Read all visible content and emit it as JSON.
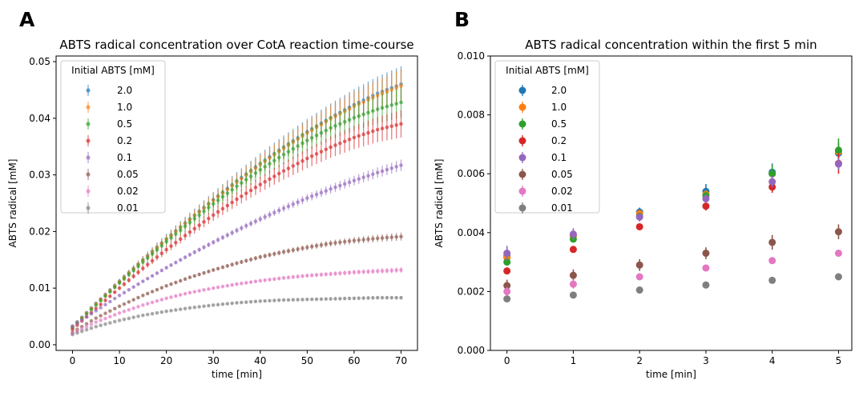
{
  "panels": {
    "a": {
      "label": "A"
    },
    "b": {
      "label": "B"
    }
  },
  "chart_data": [
    {
      "type": "scatter",
      "title": "ABTS radical concentration over CotA reaction time-course",
      "xlabel": "time [min]",
      "ylabel": "ABTS radical [mM]",
      "xlim": [
        -3.5,
        73.5
      ],
      "ylim": [
        -0.001,
        0.051
      ],
      "xticks": [
        0,
        10,
        20,
        30,
        40,
        50,
        60,
        70
      ],
      "xtick_labels": [
        "0",
        "10",
        "20",
        "30",
        "40",
        "50",
        "60",
        "70"
      ],
      "yticks": [
        0,
        0.01,
        0.02,
        0.03,
        0.04,
        0.05
      ],
      "ytick_labels": [
        "0.00",
        "0.01",
        "0.02",
        "0.03",
        "0.04",
        "0.05"
      ],
      "grid": false,
      "legend": {
        "title": "Initial ABTS [mM]",
        "placement": "top-left"
      },
      "error_bars": true,
      "x_sampling": {
        "start": 0,
        "step": 1,
        "end": 70
      },
      "series_curve_note": "values at x = 0, 5, 10, ..., 70",
      "series": [
        {
          "name": "2.0",
          "color": "#1f77b4",
          "x": [
            0,
            5,
            10,
            15,
            20,
            25,
            30,
            35,
            40,
            45,
            50,
            55,
            60,
            65,
            70
          ],
          "y": [
            0.0032,
            0.0073,
            0.0112,
            0.015,
            0.0187,
            0.0222,
            0.0256,
            0.0289,
            0.032,
            0.0349,
            0.0376,
            0.0401,
            0.0424,
            0.0444,
            0.046
          ],
          "err_end": 0.0032
        },
        {
          "name": "1.0",
          "color": "#ff7f0e",
          "x": [
            0,
            5,
            10,
            15,
            20,
            25,
            30,
            35,
            40,
            45,
            50,
            55,
            60,
            65,
            70
          ],
          "y": [
            0.0031,
            0.0072,
            0.0111,
            0.0149,
            0.0186,
            0.0221,
            0.0255,
            0.0287,
            0.0318,
            0.0347,
            0.0374,
            0.0399,
            0.0421,
            0.044,
            0.0457
          ],
          "err_end": 0.003
        },
        {
          "name": "0.5",
          "color": "#2ca02c",
          "x": [
            0,
            5,
            10,
            15,
            20,
            25,
            30,
            35,
            40,
            45,
            50,
            55,
            60,
            65,
            70
          ],
          "y": [
            0.003,
            0.007,
            0.0109,
            0.0146,
            0.0182,
            0.0216,
            0.0249,
            0.028,
            0.0309,
            0.0336,
            0.0361,
            0.0383,
            0.0401,
            0.0416,
            0.0428
          ],
          "err_end": 0.0027
        },
        {
          "name": "0.2",
          "color": "#d62728",
          "x": [
            0,
            5,
            10,
            15,
            20,
            25,
            30,
            35,
            40,
            45,
            50,
            55,
            60,
            65,
            70
          ],
          "y": [
            0.0027,
            0.0064,
            0.01,
            0.0135,
            0.0168,
            0.0199,
            0.0229,
            0.0257,
            0.0283,
            0.0307,
            0.0329,
            0.0349,
            0.0366,
            0.038,
            0.039
          ],
          "err_end": 0.0024
        },
        {
          "name": "0.1",
          "color": "#9467bd",
          "x": [
            0,
            5,
            10,
            15,
            20,
            25,
            30,
            35,
            40,
            45,
            50,
            55,
            60,
            65,
            70
          ],
          "y": [
            0.0033,
            0.006,
            0.0087,
            0.0112,
            0.0136,
            0.0159,
            0.0181,
            0.0202,
            0.0222,
            0.0241,
            0.0259,
            0.0275,
            0.029,
            0.0304,
            0.0317
          ],
          "err_end": 0.001
        },
        {
          "name": "0.05",
          "color": "#8c564b",
          "x": [
            0,
            5,
            10,
            15,
            20,
            25,
            30,
            35,
            40,
            45,
            50,
            55,
            60,
            65,
            70
          ],
          "y": [
            0.0022,
            0.0047,
            0.0068,
            0.0087,
            0.0104,
            0.0119,
            0.0132,
            0.0144,
            0.0155,
            0.0164,
            0.0172,
            0.0179,
            0.0184,
            0.0188,
            0.0191
          ],
          "err_end": 0.0007
        },
        {
          "name": "0.02",
          "color": "#e377c2",
          "x": [
            0,
            5,
            10,
            15,
            20,
            25,
            30,
            35,
            40,
            45,
            50,
            55,
            60,
            65,
            70
          ],
          "y": [
            0.002,
            0.004,
            0.0056,
            0.007,
            0.0082,
            0.0092,
            0.01,
            0.0107,
            0.0113,
            0.0118,
            0.0122,
            0.0125,
            0.0128,
            0.013,
            0.0132
          ],
          "err_end": 0.0005
        },
        {
          "name": "0.01",
          "color": "#7f7f7f",
          "x": [
            0,
            5,
            10,
            15,
            20,
            25,
            30,
            35,
            40,
            45,
            50,
            55,
            60,
            65,
            70
          ],
          "y": [
            0.0018,
            0.0032,
            0.0043,
            0.0052,
            0.0059,
            0.0065,
            0.007,
            0.0074,
            0.0077,
            0.0079,
            0.008,
            0.0081,
            0.0082,
            0.0083,
            0.0083
          ],
          "err_end": 0.0003
        }
      ]
    },
    {
      "type": "scatter",
      "title": "ABTS radical concentration within the first 5 min",
      "xlabel": "time [min]",
      "ylabel": "ABTS radical [mM]",
      "xlim": [
        -0.25,
        5.2
      ],
      "ylim": [
        0.0,
        0.01
      ],
      "xticks": [
        0,
        1,
        2,
        3,
        4,
        5
      ],
      "xtick_labels": [
        "0",
        "1",
        "2",
        "3",
        "4",
        "5"
      ],
      "yticks": [
        0,
        0.002,
        0.004,
        0.006,
        0.008,
        0.01
      ],
      "ytick_labels": [
        "0.000",
        "0.002",
        "0.004",
        "0.006",
        "0.008",
        "0.010"
      ],
      "grid": false,
      "legend": {
        "title": "Initial ABTS [mM]",
        "placement": "top-left"
      },
      "error_bars": true,
      "series": [
        {
          "name": "2.0",
          "color": "#1f77b4",
          "x": [
            0,
            1,
            2,
            3,
            4,
            5
          ],
          "y": [
            0.0032,
            0.0039,
            0.0047,
            0.0054,
            0.00605,
            0.0067
          ],
          "err": [
            0.00015,
            0.00015,
            0.00015,
            0.00025,
            0.0003,
            0.0003
          ]
        },
        {
          "name": "1.0",
          "color": "#ff7f0e",
          "x": [
            0,
            1,
            2,
            3,
            4,
            5
          ],
          "y": [
            0.00315,
            0.00388,
            0.00465,
            0.0053,
            0.006,
            0.00675
          ],
          "err": [
            0.0001,
            0.0001,
            0.0001,
            0.00015,
            0.0002,
            0.0003
          ]
        },
        {
          "name": "0.5",
          "color": "#2ca02c",
          "x": [
            0,
            1,
            2,
            3,
            4,
            5
          ],
          "y": [
            0.003,
            0.00378,
            0.00455,
            0.00525,
            0.006,
            0.0068
          ],
          "err": [
            0.0001,
            0.0001,
            0.0001,
            0.00015,
            0.0003,
            0.0004
          ]
        },
        {
          "name": "0.2",
          "color": "#d62728",
          "x": [
            0,
            1,
            2,
            3,
            4,
            5
          ],
          "y": [
            0.0027,
            0.00343,
            0.0042,
            0.0049,
            0.00555,
            0.00635
          ],
          "err": [
            0.0001,
            0.0001,
            0.0001,
            0.00015,
            0.0002,
            0.00035
          ]
        },
        {
          "name": "0.1",
          "color": "#9467bd",
          "x": [
            0,
            1,
            2,
            3,
            4,
            5
          ],
          "y": [
            0.0033,
            0.00395,
            0.00453,
            0.00515,
            0.00573,
            0.00633
          ],
          "err": [
            0.00025,
            0.0002,
            0.00015,
            0.00015,
            0.0002,
            0.0002
          ]
        },
        {
          "name": "0.05",
          "color": "#8c564b",
          "x": [
            0,
            1,
            2,
            3,
            4,
            5
          ],
          "y": [
            0.0022,
            0.00255,
            0.0029,
            0.0033,
            0.00367,
            0.00403
          ],
          "err": [
            0.0002,
            0.0002,
            0.0002,
            0.0002,
            0.00025,
            0.00025
          ]
        },
        {
          "name": "0.02",
          "color": "#e377c2",
          "x": [
            0,
            1,
            2,
            3,
            4,
            5
          ],
          "y": [
            0.002,
            0.00225,
            0.0025,
            0.0028,
            0.00305,
            0.0033
          ],
          "err": [
            0.00015,
            0.00015,
            0.0001,
            0.0001,
            0.0001,
            0.0001
          ]
        },
        {
          "name": "0.01",
          "color": "#7f7f7f",
          "x": [
            0,
            1,
            2,
            3,
            4,
            5
          ],
          "y": [
            0.00175,
            0.00188,
            0.00205,
            0.00222,
            0.00238,
            0.0025
          ],
          "err": [
            5e-05,
            5e-05,
            5e-05,
            5e-05,
            5e-05,
            5e-05
          ]
        }
      ]
    }
  ]
}
